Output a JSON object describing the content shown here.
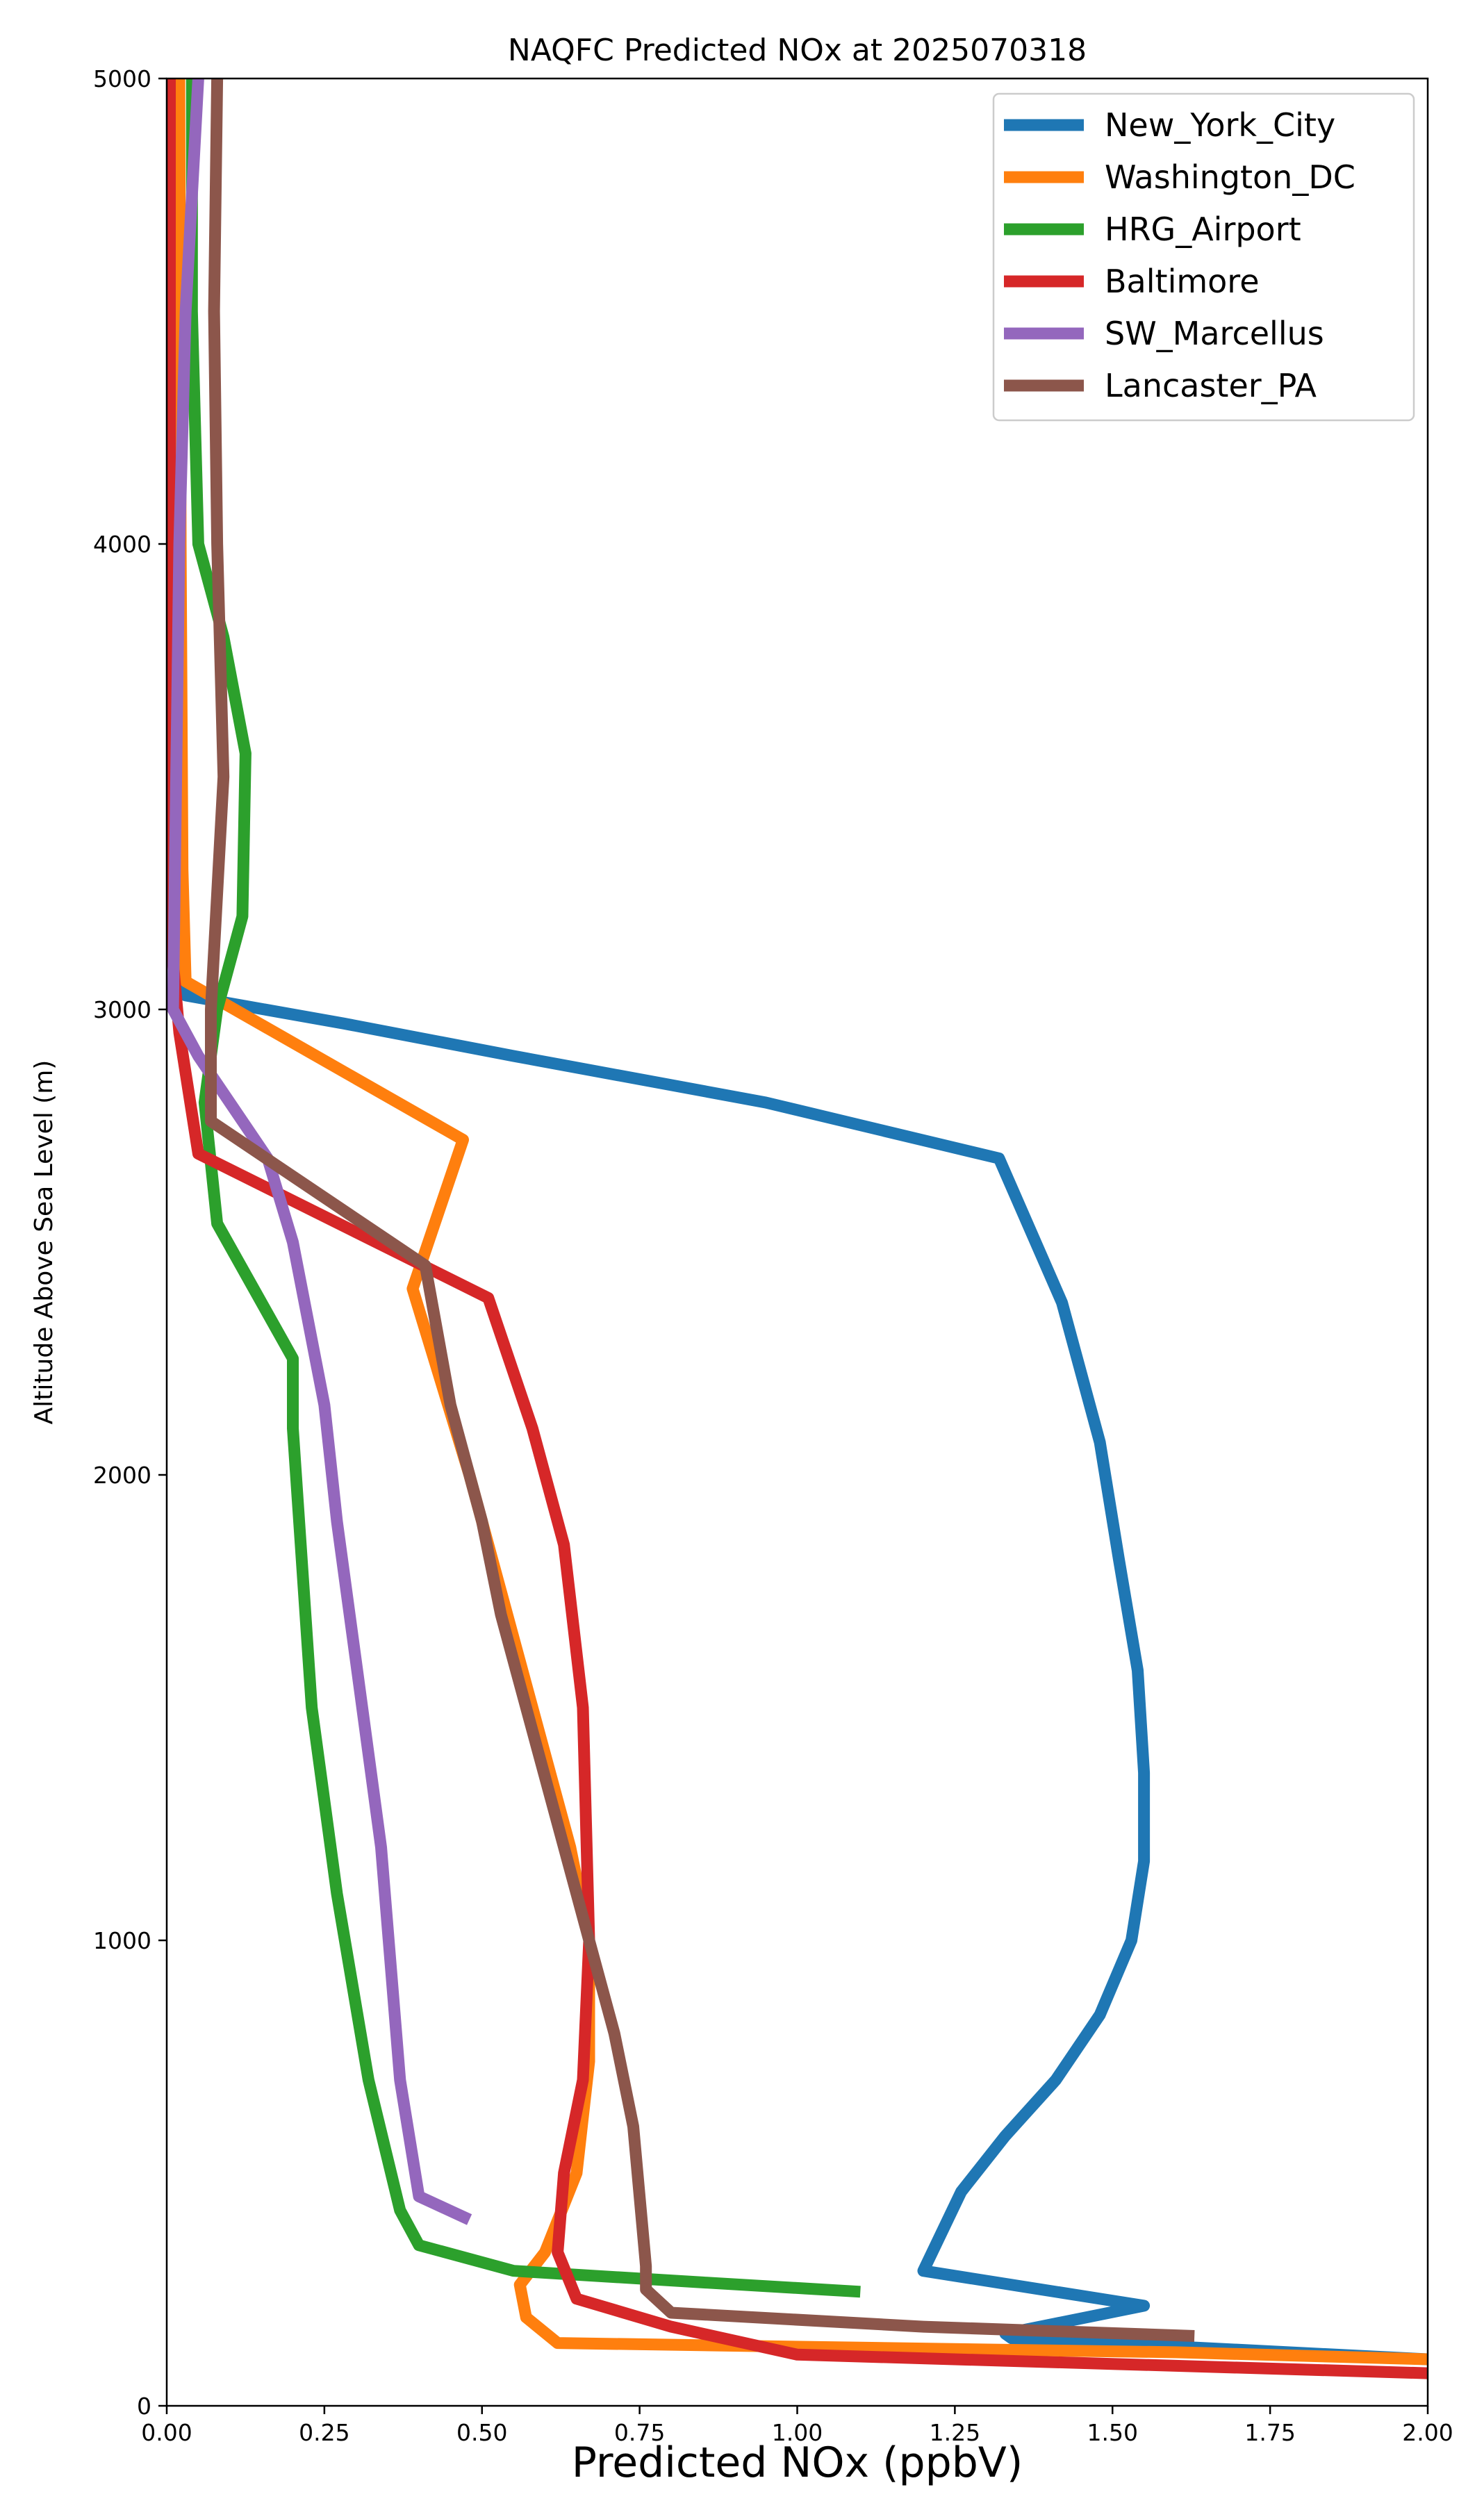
{
  "chart_data": {
    "type": "line",
    "title": "NAQFC Predicted NOx at 2025070318",
    "xlabel": "Predicted NOx (ppbV)",
    "ylabel": "Altitude Above Sea Level (m)",
    "xlim": [
      0,
      2.0
    ],
    "ylim": [
      0,
      5000
    ],
    "xticks": [
      0,
      0.25,
      0.5,
      0.75,
      1.0,
      1.25,
      1.5,
      1.75,
      2.0
    ],
    "xtick_labels": [
      "0.00",
      "0.25",
      "0.50",
      "0.75",
      "1.00",
      "1.25",
      "1.50",
      "1.75",
      "2.00"
    ],
    "yticks": [
      0,
      1000,
      2000,
      3000,
      4000,
      5000
    ],
    "ytick_labels": [
      "0",
      "1000",
      "2000",
      "3000",
      "4000",
      "5000"
    ],
    "grid": false,
    "legend": "top-right",
    "series": [
      {
        "name": "New_York_City",
        "color": "#1f77b4",
        "points": [
          [
            2.0,
            100
          ],
          [
            1.34,
            145
          ],
          [
            1.33,
            155
          ],
          [
            1.55,
            215
          ],
          [
            1.2,
            290
          ],
          [
            1.26,
            460
          ],
          [
            1.33,
            580
          ],
          [
            1.41,
            700
          ],
          [
            1.48,
            840
          ],
          [
            1.53,
            1000
          ],
          [
            1.55,
            1170
          ],
          [
            1.55,
            1360
          ],
          [
            1.54,
            1580
          ],
          [
            1.51,
            1820
          ],
          [
            1.48,
            2070
          ],
          [
            1.42,
            2370
          ],
          [
            1.32,
            2680
          ],
          [
            0.95,
            2800
          ],
          [
            0.55,
            2900
          ],
          [
            0.28,
            2970
          ],
          [
            0.03,
            3030
          ],
          [
            0.02,
            3200
          ],
          [
            0.015,
            3500
          ],
          [
            0.012,
            4000
          ],
          [
            0.012,
            4500
          ],
          [
            0.012,
            5000
          ]
        ]
      },
      {
        "name": "Washington_DC",
        "color": "#ff7f0e",
        "points": [
          [
            2.0,
            100
          ],
          [
            1.6,
            115
          ],
          [
            1.1,
            125
          ],
          [
            0.62,
            135
          ],
          [
            0.57,
            190
          ],
          [
            0.56,
            260
          ],
          [
            0.6,
            330
          ],
          [
            0.65,
            500
          ],
          [
            0.67,
            740
          ],
          [
            0.67,
            1000
          ],
          [
            0.64,
            1200
          ],
          [
            0.56,
            1600
          ],
          [
            0.48,
            2000
          ],
          [
            0.39,
            2400
          ],
          [
            0.47,
            2720
          ],
          [
            0.03,
            3060
          ],
          [
            0.025,
            3300
          ],
          [
            0.022,
            4000
          ],
          [
            0.02,
            5000
          ]
        ]
      },
      {
        "name": "HRG_Airport",
        "color": "#2ca02c",
        "points": [
          [
            1.1,
            245
          ],
          [
            0.85,
            265
          ],
          [
            0.55,
            290
          ],
          [
            0.4,
            345
          ],
          [
            0.37,
            420
          ],
          [
            0.32,
            700
          ],
          [
            0.27,
            1100
          ],
          [
            0.23,
            1500
          ],
          [
            0.2,
            2100
          ],
          [
            0.2,
            2250
          ],
          [
            0.08,
            2540
          ],
          [
            0.06,
            2800
          ],
          [
            0.08,
            3000
          ],
          [
            0.12,
            3200
          ],
          [
            0.125,
            3550
          ],
          [
            0.09,
            3800
          ],
          [
            0.05,
            4000
          ],
          [
            0.04,
            4500
          ],
          [
            0.04,
            5000
          ]
        ]
      },
      {
        "name": "Baltimore",
        "color": "#d62728",
        "points": [
          [
            2.0,
            70
          ],
          [
            1.5,
            90
          ],
          [
            1.0,
            110
          ],
          [
            0.8,
            170
          ],
          [
            0.65,
            230
          ],
          [
            0.62,
            330
          ],
          [
            0.63,
            500
          ],
          [
            0.66,
            700
          ],
          [
            0.67,
            1000
          ],
          [
            0.66,
            1500
          ],
          [
            0.63,
            1850
          ],
          [
            0.58,
            2100
          ],
          [
            0.51,
            2380
          ],
          [
            0.05,
            2690
          ],
          [
            0.02,
            2950
          ],
          [
            0.01,
            3100
          ],
          [
            0.005,
            4000
          ],
          [
            0.005,
            5000
          ]
        ]
      },
      {
        "name": "SW_Marcellus",
        "color": "#9467bd",
        "points": [
          [
            0.48,
            400
          ],
          [
            0.4,
            450
          ],
          [
            0.37,
            700
          ],
          [
            0.34,
            1200
          ],
          [
            0.3,
            1600
          ],
          [
            0.27,
            1900
          ],
          [
            0.25,
            2150
          ],
          [
            0.2,
            2500
          ],
          [
            0.16,
            2680
          ],
          [
            0.05,
            2900
          ],
          [
            0.01,
            3000
          ],
          [
            0.015,
            3500
          ],
          [
            0.02,
            4000
          ],
          [
            0.03,
            4500
          ],
          [
            0.05,
            5000
          ]
        ]
      },
      {
        "name": "Lancaster_PA",
        "color": "#8c564b",
        "points": [
          [
            1.63,
            150
          ],
          [
            1.2,
            170
          ],
          [
            0.8,
            200
          ],
          [
            0.76,
            250
          ],
          [
            0.76,
            300
          ],
          [
            0.74,
            600
          ],
          [
            0.71,
            800
          ],
          [
            0.67,
            1000
          ],
          [
            0.61,
            1300
          ],
          [
            0.53,
            1700
          ],
          [
            0.5,
            1900
          ],
          [
            0.45,
            2150
          ],
          [
            0.41,
            2450
          ],
          [
            0.07,
            2760
          ],
          [
            0.07,
            3000
          ],
          [
            0.09,
            3500
          ],
          [
            0.08,
            4000
          ],
          [
            0.075,
            4500
          ],
          [
            0.08,
            5000
          ]
        ]
      }
    ]
  }
}
